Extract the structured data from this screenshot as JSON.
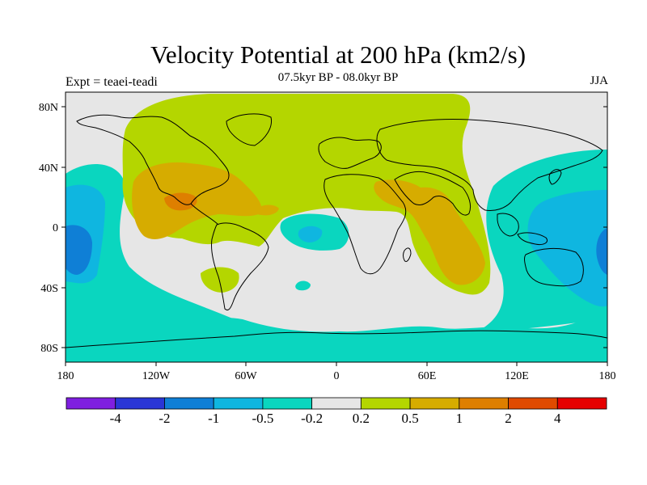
{
  "title": "Velocity Potential at 200 hPa (km2/s)",
  "subtitle": "07.5kyr BP - 08.0kyr BP",
  "experiment": "Expt = teaei-teadi",
  "season": "JJA",
  "axes": {
    "lat_ticks": [
      "80N",
      "40N",
      "0",
      "40S",
      "80S"
    ],
    "lon_ticks": [
      "180",
      "120W",
      "60W",
      "0",
      "60E",
      "120E",
      "180"
    ]
  },
  "colorbar": {
    "levels": [
      "-4",
      "-2",
      "-1",
      "-0.5",
      "-0.2",
      "0.2",
      "0.5",
      "1",
      "2",
      "4"
    ],
    "colors": [
      "#7f1fe0",
      "#2a36d6",
      "#0f7fd6",
      "#0fb6e0",
      "#0ad6bf",
      "#e6e6e6",
      "#b4d600",
      "#d6ac00",
      "#de7f00",
      "#e04a00",
      "#e60000"
    ]
  }
}
